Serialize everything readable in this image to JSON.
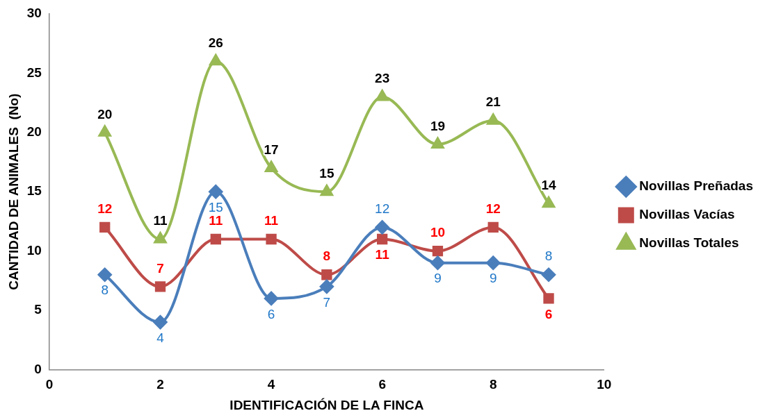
{
  "chart_data": {
    "type": "line",
    "xlabel": "IDENTIFICACIÓN DE LA FINCA",
    "ylabel": "CANTIDAD DE ANIMALES  (No)",
    "x": [
      1,
      2,
      3,
      4,
      5,
      6,
      7,
      8,
      9
    ],
    "series": [
      {
        "name": "Novillas Preñadas",
        "color": "#4a7ebb",
        "marker": "diamond",
        "values": [
          8,
          4,
          15,
          6,
          7,
          12,
          9,
          9,
          8
        ]
      },
      {
        "name": "Novillas Vacías",
        "color": "#be4b48",
        "marker": "square",
        "values": [
          12,
          7,
          11,
          11,
          8,
          11,
          10,
          12,
          6
        ]
      },
      {
        "name": "Novillas Totales",
        "color": "#98b954",
        "marker": "triangle",
        "values": [
          20,
          11,
          26,
          17,
          15,
          23,
          19,
          21,
          14
        ]
      }
    ],
    "xlim": [
      0,
      10
    ],
    "xticks": [
      0,
      2,
      4,
      6,
      8,
      10
    ],
    "ylim": [
      0,
      30
    ],
    "yticks": [
      0,
      5,
      10,
      15,
      20,
      25,
      30
    ],
    "grid": false,
    "legend": "right",
    "data_labels": true
  }
}
